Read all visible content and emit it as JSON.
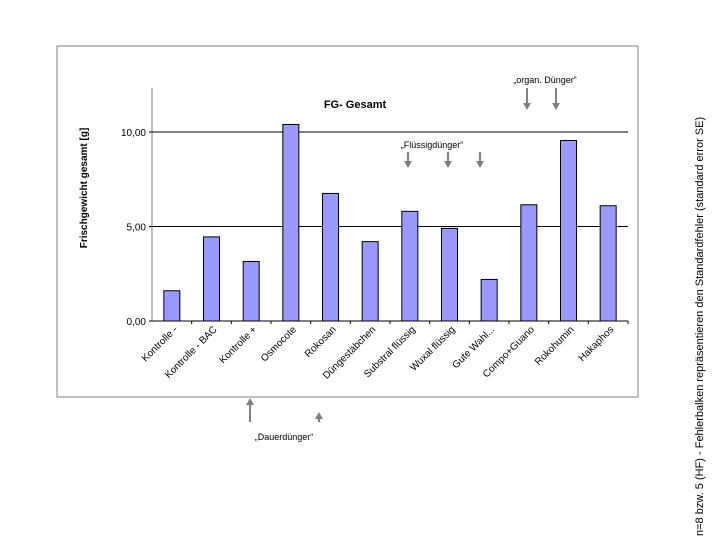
{
  "side_note": "n=8 bzw. 5 (HF) - Fehlerbalken repräsentieren den Standardfehler (standard error SE)",
  "annotations": {
    "organic": "„organ. Dünger“",
    "liquid": "„Flüssigdünger“",
    "slow_release": "„Dauerdünger“"
  },
  "chart_data": {
    "type": "bar",
    "title": "FG- Gesamt",
    "ylabel": "Frischgewicht gesamt [g]",
    "xlabel": "",
    "categories": [
      "Kontrolle -",
      "Kontrolle - BAC",
      "Kontrolle +",
      "Osmocote",
      "Rokosan",
      "Düngestäbchen",
      "Substral flüssig",
      "Wuxal flüssig",
      "Gute Wahl...",
      "Compo+Guano",
      "Rokohumin",
      "Hakaphos"
    ],
    "values": [
      1.6,
      4.45,
      3.15,
      10.4,
      6.75,
      4.2,
      5.8,
      4.9,
      2.2,
      6.15,
      9.55,
      6.1
    ],
    "ylim": [
      0,
      12.5
    ],
    "yticks": [
      0,
      5,
      10
    ],
    "ytick_labels": [
      "0,00",
      "5,00",
      "10,00"
    ],
    "grid": true,
    "colors": {
      "bar_fill": "#9999ff",
      "bar_stroke": "#000000",
      "grid": "#000000",
      "arrow": "#808080"
    },
    "annotation_arrows": [
      {
        "group": "slow_release",
        "category": "Kontrolle +",
        "direction": "up"
      },
      {
        "group": "slow_release",
        "category": "Osmocote",
        "direction": "up"
      },
      {
        "group": "liquid",
        "category": "Substral flüssig",
        "direction": "down"
      },
      {
        "group": "liquid",
        "category": "Wuxal flüssig",
        "direction": "down"
      },
      {
        "group": "liquid",
        "category": "Gute Wahl...",
        "direction": "down"
      },
      {
        "group": "organic",
        "category": "Compo+Guano",
        "direction": "down"
      },
      {
        "group": "organic",
        "category": "Rokohumin",
        "direction": "down"
      }
    ]
  }
}
